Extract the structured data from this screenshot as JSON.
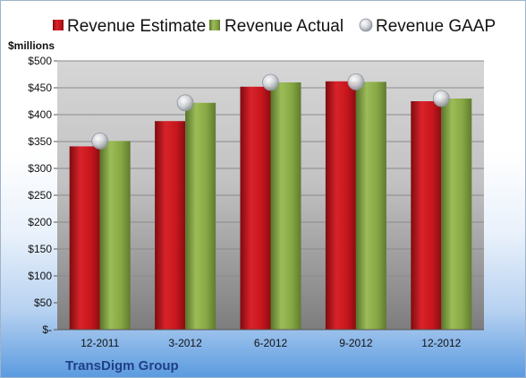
{
  "units_label": "$millions",
  "company": "TransDigm Group",
  "colors": {
    "estimate": "#c8161d",
    "actual": "#7fa03c",
    "gaap": "#b8bcc4"
  },
  "chart_data": {
    "type": "bar",
    "categories": [
      "12-2011",
      "3-2012",
      "6-2012",
      "9-2012",
      "12-2012"
    ],
    "series": [
      {
        "name": "Revenue Estimate",
        "kind": "bar",
        "values": [
          341,
          388,
          452,
          462,
          425
        ]
      },
      {
        "name": "Revenue Actual",
        "kind": "bar",
        "values": [
          351,
          422,
          460,
          461,
          430
        ]
      },
      {
        "name": "Revenue GAAP",
        "kind": "marker",
        "values": [
          351,
          422,
          460,
          461,
          430
        ]
      }
    ],
    "yticks": [
      "$-",
      "$50",
      "$100",
      "$150",
      "$200",
      "$250",
      "$300",
      "$350",
      "$400",
      "$450",
      "$500"
    ],
    "ylim": [
      0,
      500
    ],
    "grid": true,
    "legend_position": "top"
  }
}
